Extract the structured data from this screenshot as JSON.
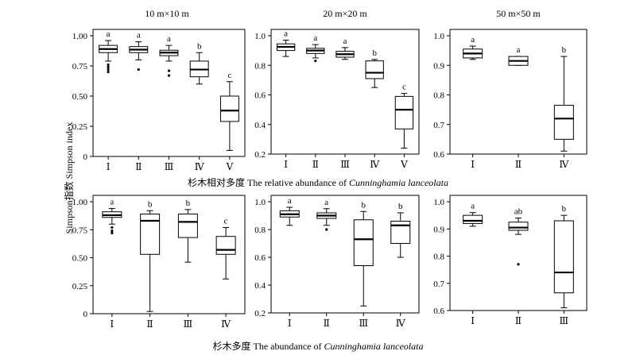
{
  "ylabel": "Simpson指数 Simpson index",
  "col_titles": [
    "10 m×10 m",
    "20 m×20 m",
    "50 m×50 m"
  ],
  "row1_caption": {
    "prefix": "杉木相对多度 The relative abundance of ",
    "species": "Cunninghamia lanceolata"
  },
  "row2_caption": {
    "prefix": "杉木多度 The abundance of ",
    "species": "Cunninghamia lanceolata"
  },
  "chart_data": [
    {
      "type": "box",
      "panel": "relative abundance, 10 m×10 m",
      "ylim": [
        0,
        1.0
      ],
      "yticks": [
        "0",
        "0.25",
        "0.50",
        "0.75",
        "1.00"
      ],
      "categories": [
        "Ⅰ",
        "Ⅱ",
        "Ⅲ",
        "Ⅳ",
        "Ⅴ"
      ],
      "letters": [
        "a",
        "a",
        "a",
        "b",
        "c"
      ],
      "boxes": [
        {
          "whisker_low": 0.79,
          "q1": 0.86,
          "median": 0.89,
          "q3": 0.92,
          "whisker_high": 0.96,
          "outliers": [
            0.7,
            0.72,
            0.74,
            0.76
          ]
        },
        {
          "whisker_low": 0.8,
          "q1": 0.86,
          "median": 0.885,
          "q3": 0.91,
          "whisker_high": 0.95,
          "outliers": [
            0.72
          ]
        },
        {
          "whisker_low": 0.79,
          "q1": 0.835,
          "median": 0.86,
          "q3": 0.88,
          "whisker_high": 0.92,
          "outliers": [
            0.67,
            0.71
          ]
        },
        {
          "whisker_low": 0.6,
          "q1": 0.66,
          "median": 0.72,
          "q3": 0.79,
          "whisker_high": 0.86,
          "outliers": []
        },
        {
          "whisker_low": 0.05,
          "q1": 0.29,
          "median": 0.38,
          "q3": 0.5,
          "whisker_high": 0.62,
          "outliers": []
        }
      ]
    },
    {
      "type": "box",
      "panel": "relative abundance, 20 m×20 m",
      "ylim": [
        0.2,
        1.0
      ],
      "yticks": [
        "0.2",
        "0.4",
        "0.6",
        "0.8",
        "1.0"
      ],
      "categories": [
        "Ⅰ",
        "Ⅱ",
        "Ⅲ",
        "Ⅳ",
        "Ⅴ"
      ],
      "letters": [
        "a",
        "a",
        "a",
        "b",
        "c"
      ],
      "boxes": [
        {
          "whisker_low": 0.86,
          "q1": 0.9,
          "median": 0.925,
          "q3": 0.945,
          "whisker_high": 0.97,
          "outliers": []
        },
        {
          "whisker_low": 0.85,
          "q1": 0.88,
          "median": 0.9,
          "q3": 0.915,
          "whisker_high": 0.94,
          "outliers": [
            0.83
          ]
        },
        {
          "whisker_low": 0.84,
          "q1": 0.855,
          "median": 0.875,
          "q3": 0.895,
          "whisker_high": 0.92,
          "outliers": []
        },
        {
          "whisker_low": 0.65,
          "q1": 0.71,
          "median": 0.75,
          "q3": 0.83,
          "whisker_high": 0.84,
          "outliers": []
        },
        {
          "whisker_low": 0.24,
          "q1": 0.37,
          "median": 0.5,
          "q3": 0.59,
          "whisker_high": 0.61,
          "outliers": []
        }
      ]
    },
    {
      "type": "box",
      "panel": "relative abundance, 50 m×50 m",
      "ylim": [
        0.6,
        1.0
      ],
      "yticks": [
        "0.6",
        "0.7",
        "0.8",
        "0.9",
        "1.0"
      ],
      "categories": [
        "Ⅰ",
        "Ⅱ",
        "Ⅳ"
      ],
      "letters": [
        "a",
        "a",
        "b"
      ],
      "boxes": [
        {
          "whisker_low": 0.92,
          "q1": 0.925,
          "median": 0.94,
          "q3": 0.955,
          "whisker_high": 0.965,
          "outliers": []
        },
        {
          "whisker_low": 0.9,
          "q1": 0.9,
          "median": 0.915,
          "q3": 0.93,
          "whisker_high": 0.93,
          "outliers": []
        },
        {
          "whisker_low": 0.61,
          "q1": 0.65,
          "median": 0.72,
          "q3": 0.765,
          "whisker_high": 0.93,
          "outliers": []
        }
      ]
    },
    {
      "type": "box",
      "panel": "abundance, 10 m×10 m",
      "ylim": [
        0,
        1.0
      ],
      "yticks": [
        "0",
        "0.25",
        "0.50",
        "0.75",
        "1.00"
      ],
      "categories": [
        "Ⅰ",
        "Ⅱ",
        "Ⅲ",
        "Ⅳ"
      ],
      "letters": [
        "a",
        "b",
        "b",
        "c"
      ],
      "boxes": [
        {
          "whisker_low": 0.8,
          "q1": 0.86,
          "median": 0.88,
          "q3": 0.91,
          "whisker_high": 0.94,
          "outliers": [
            0.72,
            0.74,
            0.77
          ]
        },
        {
          "whisker_low": 0.02,
          "q1": 0.53,
          "median": 0.83,
          "q3": 0.89,
          "whisker_high": 0.92,
          "outliers": []
        },
        {
          "whisker_low": 0.46,
          "q1": 0.68,
          "median": 0.82,
          "q3": 0.89,
          "whisker_high": 0.93,
          "outliers": []
        },
        {
          "whisker_low": 0.31,
          "q1": 0.53,
          "median": 0.57,
          "q3": 0.69,
          "whisker_high": 0.77,
          "outliers": []
        }
      ]
    },
    {
      "type": "box",
      "panel": "abundance, 20 m×20 m",
      "ylim": [
        0.2,
        1.0
      ],
      "yticks": [
        "0.2",
        "0.4",
        "0.6",
        "0.8",
        "1.0"
      ],
      "categories": [
        "Ⅰ",
        "Ⅱ",
        "Ⅲ",
        "Ⅳ"
      ],
      "letters": [
        "a",
        "a",
        "b",
        "b"
      ],
      "boxes": [
        {
          "whisker_low": 0.83,
          "q1": 0.89,
          "median": 0.91,
          "q3": 0.935,
          "whisker_high": 0.96,
          "outliers": []
        },
        {
          "whisker_low": 0.83,
          "q1": 0.88,
          "median": 0.9,
          "q3": 0.92,
          "whisker_high": 0.95,
          "outliers": [
            0.8
          ]
        },
        {
          "whisker_low": 0.25,
          "q1": 0.54,
          "median": 0.73,
          "q3": 0.87,
          "whisker_high": 0.93,
          "outliers": []
        },
        {
          "whisker_low": 0.6,
          "q1": 0.7,
          "median": 0.83,
          "q3": 0.86,
          "whisker_high": 0.92,
          "outliers": []
        }
      ]
    },
    {
      "type": "box",
      "panel": "abundance, 50 m×50 m",
      "ylim": [
        0.6,
        1.0
      ],
      "yticks": [
        "0.6",
        "0.7",
        "0.8",
        "0.9",
        "1.0"
      ],
      "categories": [
        "Ⅰ",
        "Ⅱ",
        "Ⅲ"
      ],
      "letters": [
        "a",
        "ab",
        "b"
      ],
      "boxes": [
        {
          "whisker_low": 0.91,
          "q1": 0.92,
          "median": 0.93,
          "q3": 0.95,
          "whisker_high": 0.96,
          "outliers": []
        },
        {
          "whisker_low": 0.88,
          "q1": 0.895,
          "median": 0.905,
          "q3": 0.925,
          "whisker_high": 0.94,
          "outliers": [
            0.77
          ]
        },
        {
          "whisker_low": 0.61,
          "q1": 0.665,
          "median": 0.74,
          "q3": 0.93,
          "whisker_high": 0.95,
          "outliers": []
        }
      ]
    }
  ]
}
